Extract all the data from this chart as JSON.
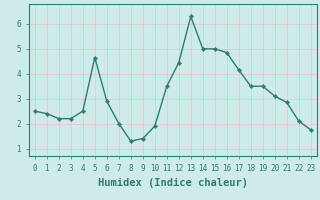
{
  "x": [
    0,
    1,
    2,
    3,
    4,
    5,
    6,
    7,
    8,
    9,
    10,
    11,
    12,
    13,
    14,
    15,
    16,
    17,
    18,
    19,
    20,
    21,
    22,
    23
  ],
  "y": [
    2.5,
    2.4,
    2.2,
    2.2,
    2.5,
    4.65,
    2.9,
    2.0,
    1.3,
    1.4,
    1.9,
    3.5,
    4.45,
    6.3,
    5.0,
    5.0,
    4.85,
    4.15,
    3.5,
    3.5,
    3.1,
    2.85,
    2.1,
    1.75
  ],
  "line_color": "#2e7d6e",
  "marker": "D",
  "markersize": 2.2,
  "linewidth": 1.0,
  "xlabel": "Humidex (Indice chaleur)",
  "xlim": [
    -0.5,
    23.5
  ],
  "ylim": [
    0.7,
    6.8
  ],
  "yticks": [
    1,
    2,
    3,
    4,
    5,
    6
  ],
  "xticks": [
    0,
    1,
    2,
    3,
    4,
    5,
    6,
    7,
    8,
    9,
    10,
    11,
    12,
    13,
    14,
    15,
    16,
    17,
    18,
    19,
    20,
    21,
    22,
    23
  ],
  "xtick_labels": [
    "0",
    "1",
    "2",
    "3",
    "4",
    "5",
    "6",
    "7",
    "8",
    "9",
    "10",
    "11",
    "12",
    "13",
    "14",
    "15",
    "16",
    "17",
    "18",
    "19",
    "20",
    "21",
    "22",
    "23"
  ],
  "bg_color": "#ceeaea",
  "grid_color": "#e8c8c8",
  "grid_linewidth": 0.6,
  "tick_fontsize": 5.5,
  "xlabel_fontsize": 7.5
}
